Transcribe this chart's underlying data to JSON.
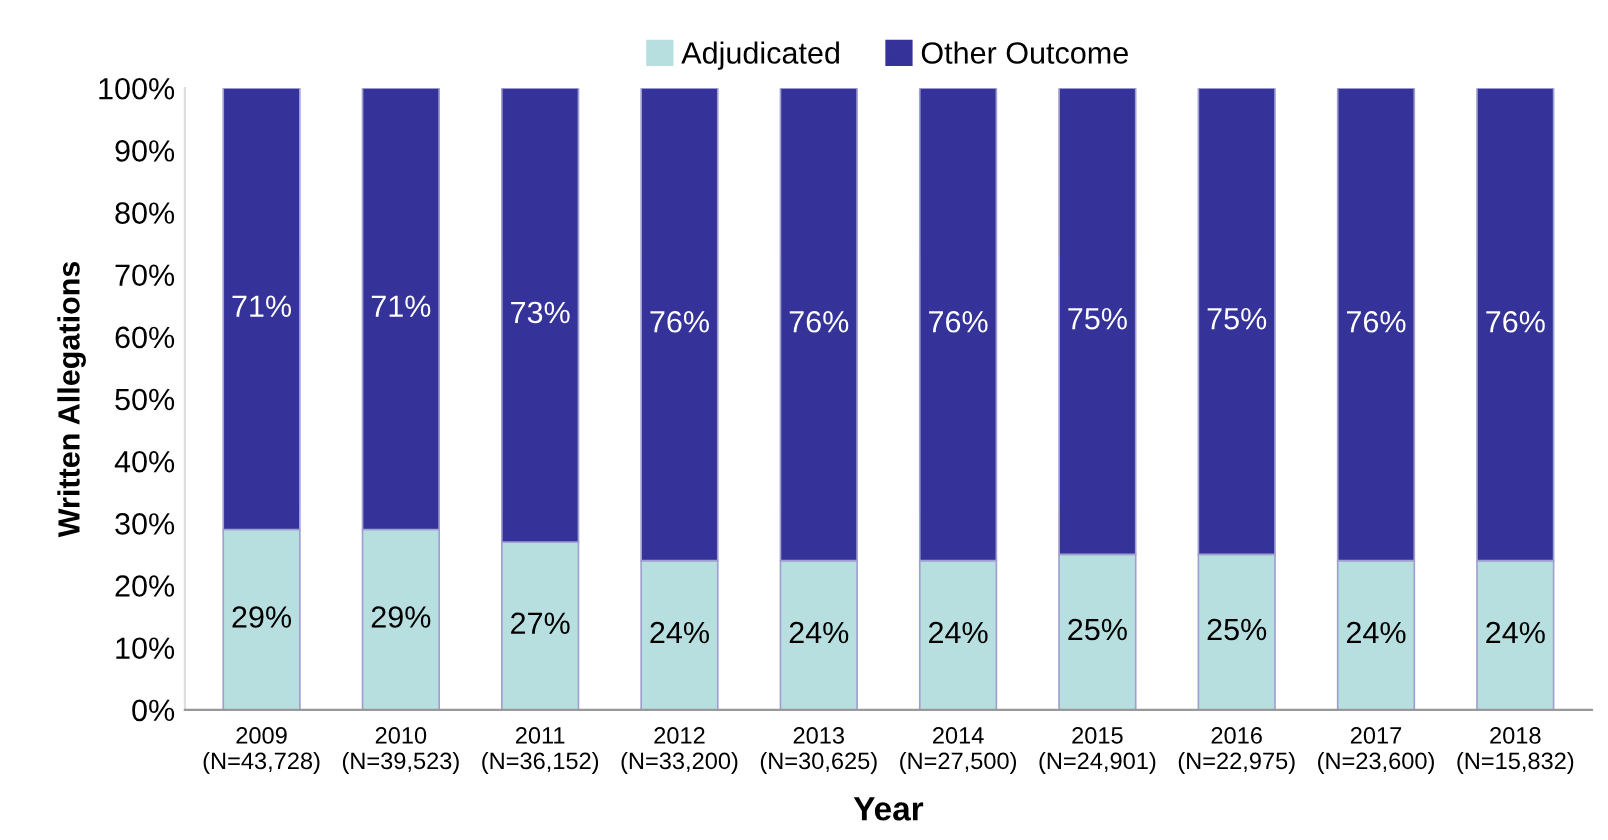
{
  "chart_data": {
    "type": "bar",
    "stacked": true,
    "xlabel": "Year",
    "ylabel": "Written Allegations",
    "categories": [
      "2009\n(N=43,728)",
      "2010\n(N=39,523)",
      "2011\n(N=36,152)",
      "2012\n(N=33,200)",
      "2013\n(N=30,625)",
      "2014\n(N=27,500)",
      "2015\n(N=24,901)",
      "2016\n(N=22,975)",
      "2017\n(N=23,600)",
      "2018\n(N=15,832)"
    ],
    "series": [
      {
        "name": "Adjudicated",
        "color": "#b7dfe0",
        "values": [
          29,
          29,
          27,
          24,
          24,
          24,
          25,
          25,
          24,
          24
        ],
        "value_labels": [
          "29%",
          "29%",
          "27%",
          "24%",
          "24%",
          "24%",
          "25%",
          "25%",
          "24%",
          "24%"
        ]
      },
      {
        "name": "Other Outcome",
        "color": "#353399",
        "values": [
          71,
          71,
          73,
          76,
          76,
          76,
          75,
          75,
          76,
          76
        ],
        "value_labels": [
          "71%",
          "71%",
          "73%",
          "76%",
          "76%",
          "76%",
          "75%",
          "75%",
          "76%",
          "76%"
        ]
      }
    ],
    "ylim": [
      0,
      100
    ],
    "yticks": [
      {
        "value": 0,
        "label": "0%"
      },
      {
        "value": 10,
        "label": "10%"
      },
      {
        "value": 20,
        "label": "20%"
      },
      {
        "value": 30,
        "label": "30%"
      },
      {
        "value": 40,
        "label": "40%"
      },
      {
        "value": 50,
        "label": "50%"
      },
      {
        "value": 60,
        "label": "60%"
      },
      {
        "value": 70,
        "label": "70%"
      },
      {
        "value": 80,
        "label": "80%"
      },
      {
        "value": 90,
        "label": "90%"
      },
      {
        "value": 100,
        "label": "100%"
      }
    ],
    "legend": "top",
    "grid": false
  }
}
